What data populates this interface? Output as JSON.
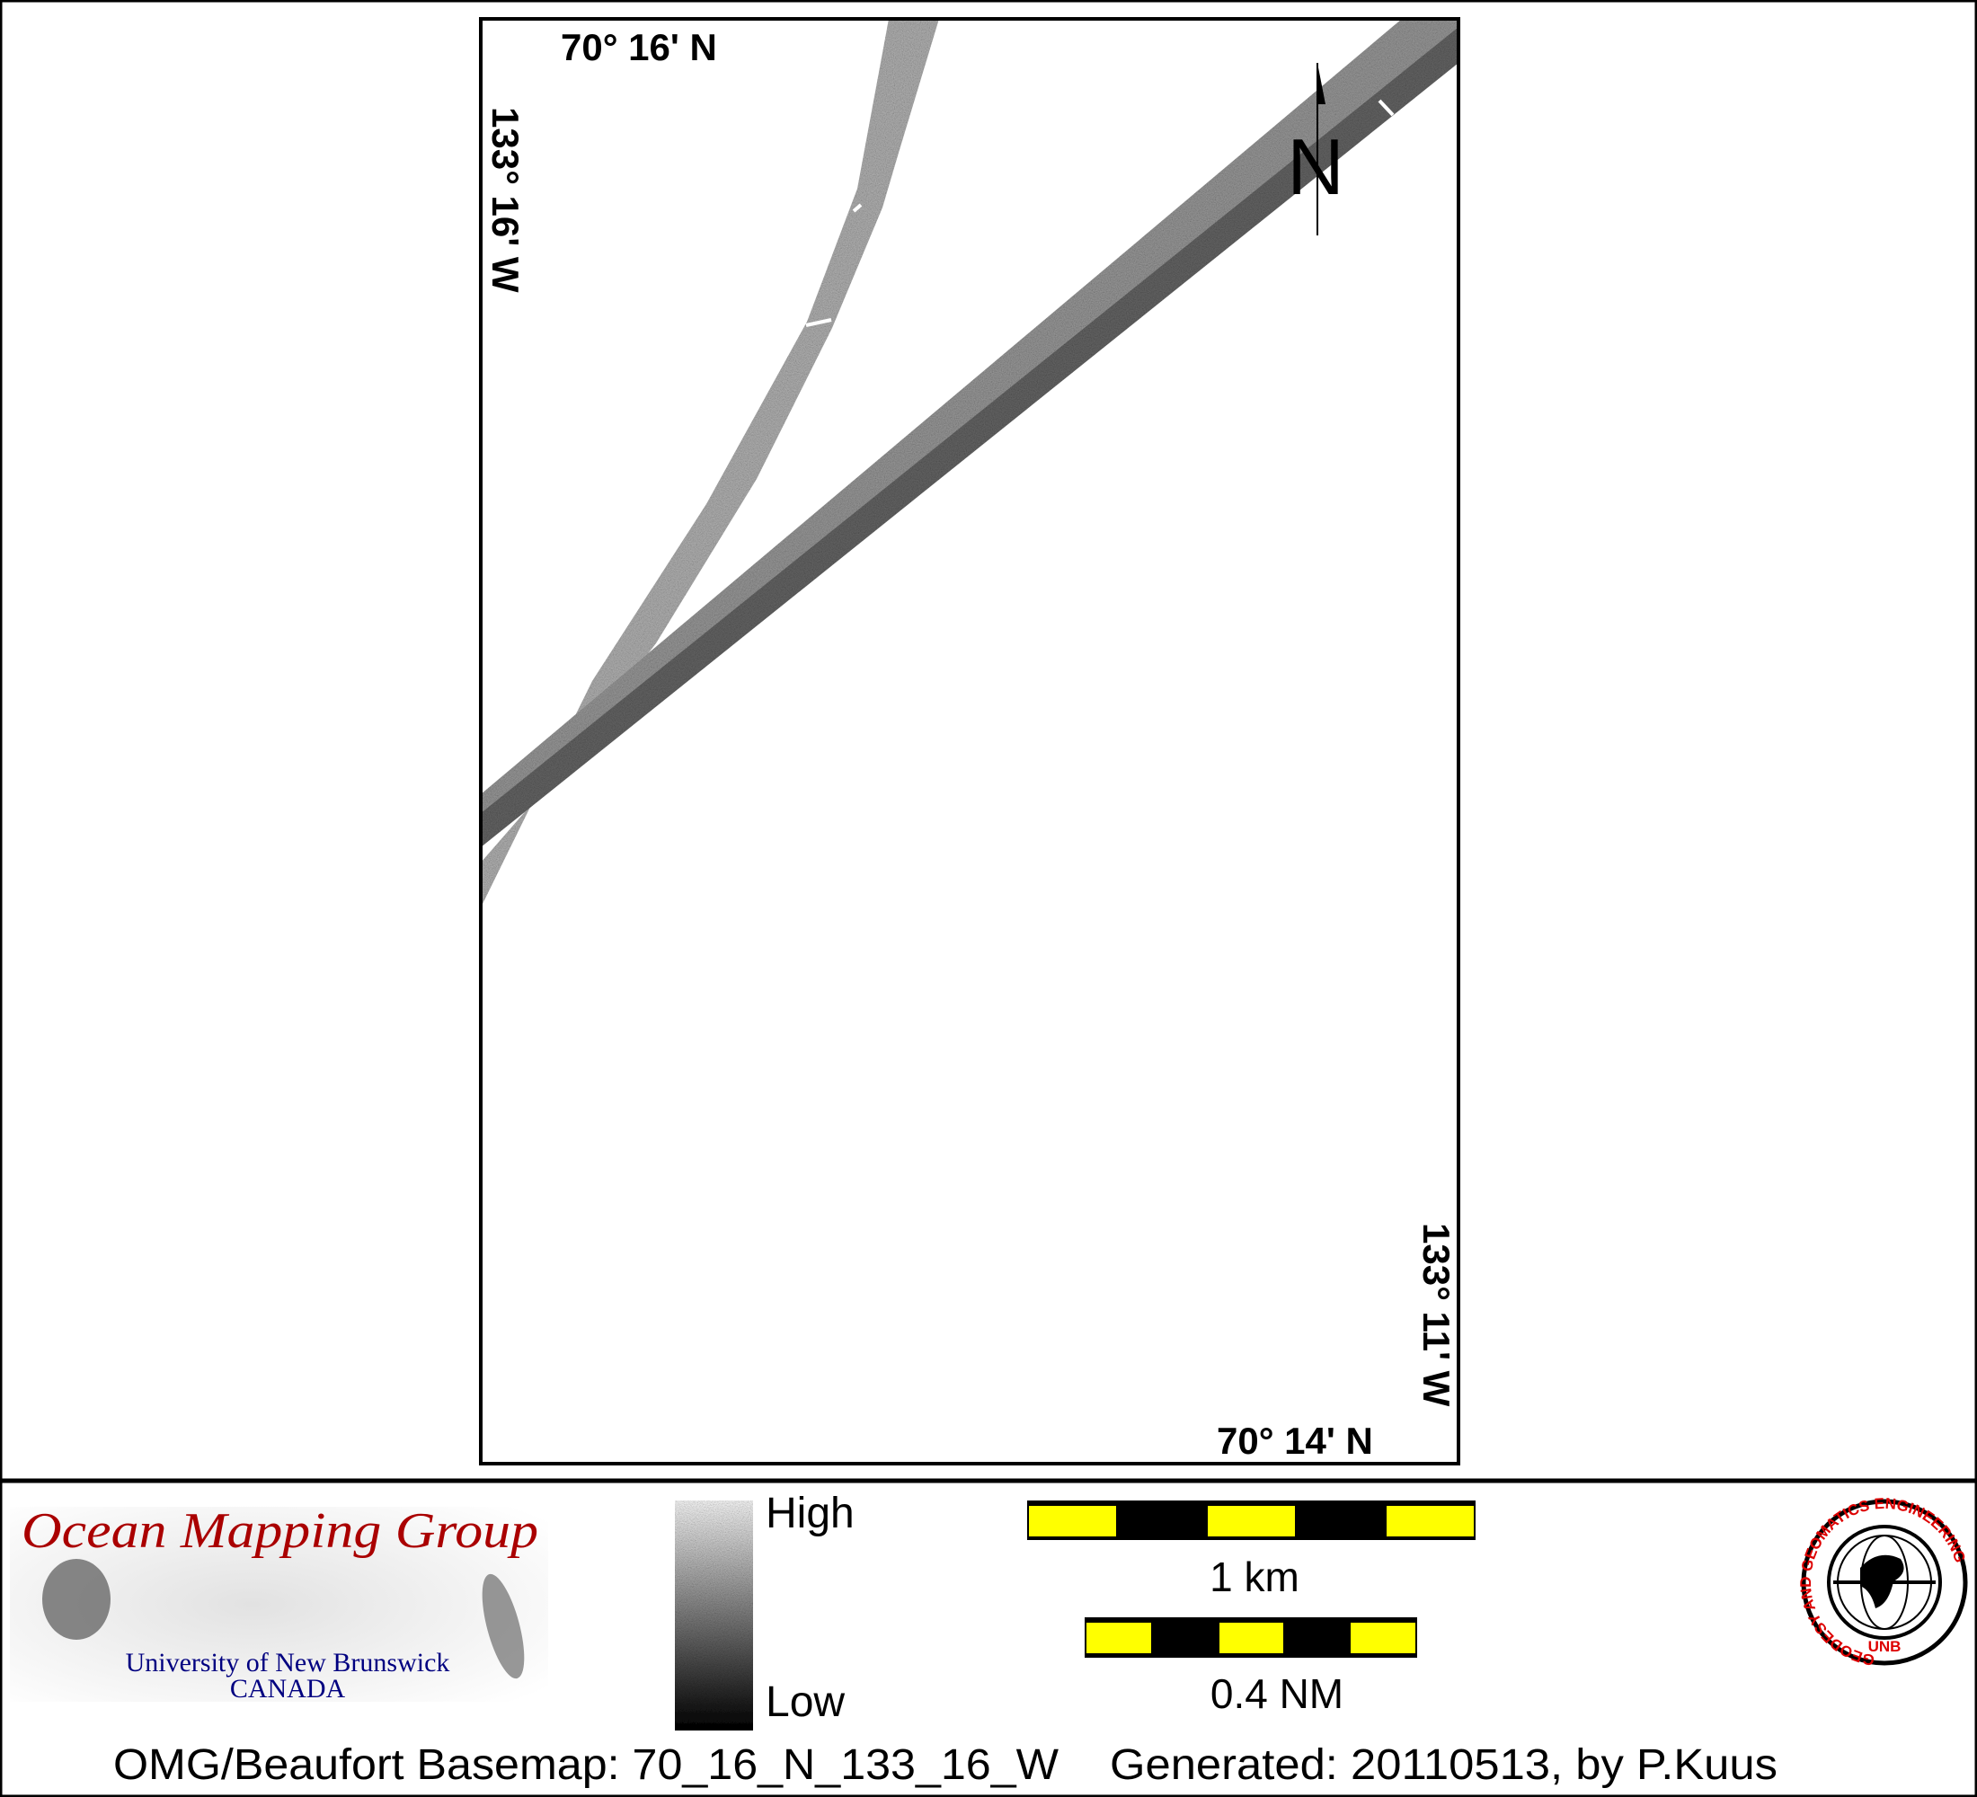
{
  "map": {
    "corner_labels": {
      "top_lat": "70° 16' N",
      "left_lon": "133° 16' W",
      "bottom_lat": "70° 14' N",
      "right_lon": "133° 11' W"
    },
    "north_arrow": "N"
  },
  "legend": {
    "high_label": "High",
    "low_label": "Low",
    "colors": {
      "high": "#ffffff",
      "low": "#000000"
    }
  },
  "scale_bars": [
    {
      "label": "1 km",
      "colors": [
        "#ffff00",
        "#000000"
      ]
    },
    {
      "label": "0.4 NM",
      "colors": [
        "#ffff00",
        "#000000"
      ]
    }
  ],
  "logos": {
    "omg": {
      "title": "Ocean Mapping Group",
      "line1": "University of New Brunswick",
      "line2": "CANADA",
      "title_color": "#aa0000",
      "sub_color": "#000080"
    },
    "unb": {
      "ring_text": "GEODESY AND GEOMATICS ENGINEERING",
      "bottom_text": "UNB",
      "color": "#dd0000"
    }
  },
  "footer": {
    "basemap": "OMG/Beaufort Basemap: 70_16_N_133_16_W",
    "generated": "Generated: 20110513, by P.Kuus"
  }
}
